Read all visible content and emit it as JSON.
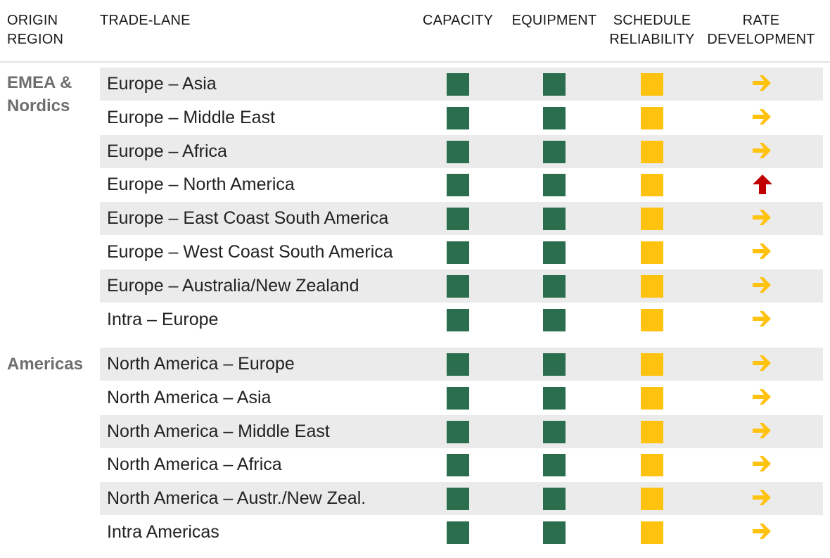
{
  "headers": {
    "origin_region": "ORIGIN\nREGION",
    "trade_lane": "TRADE-LANE",
    "capacity": "CAPACITY",
    "equipment": "EQUIPMENT",
    "schedule_reliability": "SCHEDULE\nRELIABILITY",
    "rate_development": "RATE\nDEVELOPMENT"
  },
  "colors": {
    "green": "#2b6e4d",
    "amber": "#ffc20e",
    "red": "#c00000",
    "row_shade": "#ebebeb",
    "region_text": "#6e6e6e"
  },
  "regions": [
    {
      "name": "EMEA &\nNordics",
      "lanes": [
        {
          "lane": "Europe – Asia",
          "capacity": "green",
          "equipment": "green",
          "schedule": "amber",
          "rate": "flat"
        },
        {
          "lane": "Europe – Middle East",
          "capacity": "green",
          "equipment": "green",
          "schedule": "amber",
          "rate": "flat"
        },
        {
          "lane": "Europe – Africa",
          "capacity": "green",
          "equipment": "green",
          "schedule": "amber",
          "rate": "flat"
        },
        {
          "lane": "Europe – North America",
          "capacity": "green",
          "equipment": "green",
          "schedule": "amber",
          "rate": "up"
        },
        {
          "lane": "Europe – East Coast South America",
          "capacity": "green",
          "equipment": "green",
          "schedule": "amber",
          "rate": "flat"
        },
        {
          "lane": "Europe – West Coast South America",
          "capacity": "green",
          "equipment": "green",
          "schedule": "amber",
          "rate": "flat"
        },
        {
          "lane": "Europe – Australia/New Zealand",
          "capacity": "green",
          "equipment": "green",
          "schedule": "amber",
          "rate": "flat"
        },
        {
          "lane": "Intra – Europe",
          "capacity": "green",
          "equipment": "green",
          "schedule": "amber",
          "rate": "flat"
        }
      ]
    },
    {
      "name": "Americas",
      "lanes": [
        {
          "lane": "North America – Europe",
          "capacity": "green",
          "equipment": "green",
          "schedule": "amber",
          "rate": "flat"
        },
        {
          "lane": "North America – Asia",
          "capacity": "green",
          "equipment": "green",
          "schedule": "amber",
          "rate": "flat"
        },
        {
          "lane": "North America – Middle East",
          "capacity": "green",
          "equipment": "green",
          "schedule": "amber",
          "rate": "flat"
        },
        {
          "lane": "North America – Africa",
          "capacity": "green",
          "equipment": "green",
          "schedule": "amber",
          "rate": "flat"
        },
        {
          "lane": "North America – Austr./New Zeal.",
          "capacity": "green",
          "equipment": "green",
          "schedule": "amber",
          "rate": "flat"
        },
        {
          "lane": "Intra Americas",
          "capacity": "green",
          "equipment": "green",
          "schedule": "amber",
          "rate": "flat"
        }
      ]
    }
  ]
}
